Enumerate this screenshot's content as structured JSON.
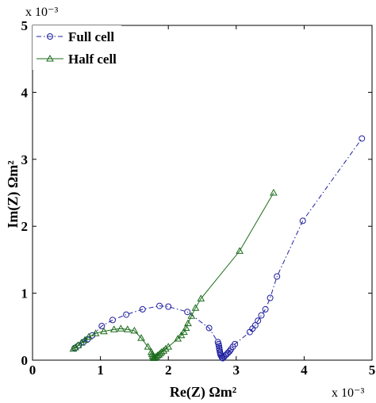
{
  "chart_data": {
    "type": "line",
    "xlabel": "Re(Z) Ωm²",
    "ylabel": "Im(Z) Ωm²",
    "x_multiplier": "x 10⁻³",
    "y_multiplier": "x 10⁻³",
    "xlim": [
      0,
      5
    ],
    "ylim": [
      0,
      5
    ],
    "x_ticks": [
      "0",
      "1",
      "2",
      "3",
      "4",
      "5"
    ],
    "y_ticks": [
      "0",
      "1",
      "2",
      "3",
      "4",
      "5"
    ],
    "grid": false,
    "legend_position": "top-left",
    "series": [
      {
        "name": "Full cell",
        "color": "#1f1fa0",
        "marker": "circle",
        "line_style": "dash-dot",
        "points": [
          [
            0.62,
            0.18
          ],
          [
            0.68,
            0.22
          ],
          [
            0.75,
            0.27
          ],
          [
            0.81,
            0.31
          ],
          [
            0.88,
            0.37
          ],
          [
            1.02,
            0.51
          ],
          [
            1.18,
            0.6
          ],
          [
            1.38,
            0.68
          ],
          [
            1.62,
            0.76
          ],
          [
            1.87,
            0.81
          ],
          [
            2.0,
            0.8
          ],
          [
            2.28,
            0.72
          ],
          [
            2.6,
            0.48
          ],
          [
            2.73,
            0.27
          ],
          [
            2.74,
            0.24
          ],
          [
            2.745,
            0.21
          ],
          [
            2.75,
            0.18
          ],
          [
            2.755,
            0.15
          ],
          [
            2.76,
            0.12
          ],
          [
            2.765,
            0.1
          ],
          [
            2.77,
            0.08
          ],
          [
            2.78,
            0.06
          ],
          [
            2.79,
            0.04
          ],
          [
            2.8,
            0.03
          ],
          [
            2.82,
            0.05
          ],
          [
            2.84,
            0.07
          ],
          [
            2.86,
            0.09
          ],
          [
            2.88,
            0.11
          ],
          [
            2.9,
            0.13
          ],
          [
            2.92,
            0.16
          ],
          [
            2.95,
            0.2
          ],
          [
            2.98,
            0.24
          ],
          [
            3.2,
            0.42
          ],
          [
            3.24,
            0.47
          ],
          [
            3.28,
            0.52
          ],
          [
            3.32,
            0.59
          ],
          [
            3.37,
            0.67
          ],
          [
            3.43,
            0.76
          ],
          [
            3.5,
            0.93
          ],
          [
            3.6,
            1.25
          ],
          [
            3.98,
            2.08
          ],
          [
            4.85,
            3.31
          ]
        ]
      },
      {
        "name": "Half cell",
        "color": "#1a6b1a",
        "marker": "triangle",
        "line_style": "solid",
        "points": [
          [
            0.6,
            0.17
          ],
          [
            0.63,
            0.19
          ],
          [
            0.67,
            0.22
          ],
          [
            0.72,
            0.26
          ],
          [
            0.77,
            0.3
          ],
          [
            0.83,
            0.35
          ],
          [
            0.93,
            0.4
          ],
          [
            1.05,
            0.43
          ],
          [
            1.2,
            0.46
          ],
          [
            1.3,
            0.47
          ],
          [
            1.4,
            0.46
          ],
          [
            1.5,
            0.44
          ],
          [
            1.6,
            0.33
          ],
          [
            1.7,
            0.2
          ],
          [
            1.75,
            0.12
          ],
          [
            1.76,
            0.09
          ],
          [
            1.77,
            0.06
          ],
          [
            1.78,
            0.04
          ],
          [
            1.79,
            0.03
          ],
          [
            1.8,
            0.04
          ],
          [
            1.82,
            0.05
          ],
          [
            1.84,
            0.07
          ],
          [
            1.86,
            0.08
          ],
          [
            1.88,
            0.1
          ],
          [
            1.9,
            0.12
          ],
          [
            1.93,
            0.14
          ],
          [
            1.96,
            0.17
          ],
          [
            2.0,
            0.2
          ],
          [
            2.14,
            0.32
          ],
          [
            2.19,
            0.37
          ],
          [
            2.23,
            0.42
          ],
          [
            2.26,
            0.48
          ],
          [
            2.29,
            0.55
          ],
          [
            2.34,
            0.66
          ],
          [
            2.4,
            0.78
          ],
          [
            2.48,
            0.92
          ],
          [
            3.05,
            1.63
          ],
          [
            3.55,
            2.5
          ]
        ]
      }
    ]
  }
}
